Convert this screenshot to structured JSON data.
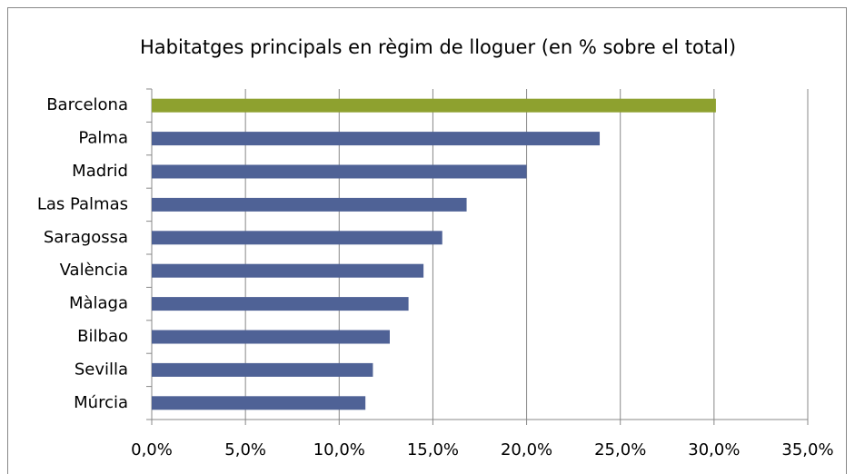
{
  "chart_data": {
    "type": "barh",
    "title": "Habitatges principals en règim de lloguer (en % sobre el total)",
    "categories": [
      "Barcelona",
      "Palma",
      "Madrid",
      "Las Palmas",
      "Saragossa",
      "València",
      "Màlaga",
      "Bilbao",
      "Sevilla",
      "Múrcia"
    ],
    "values": [
      30.1,
      23.9,
      20.0,
      16.8,
      15.5,
      14.5,
      13.7,
      12.7,
      11.8,
      11.4
    ],
    "colors": [
      "#8ea12f",
      "#4f6296",
      "#4f6296",
      "#4f6296",
      "#4f6296",
      "#4f6296",
      "#4f6296",
      "#4f6296",
      "#4f6296",
      "#4f6296"
    ],
    "xlim": [
      0,
      35
    ],
    "xticks": [
      {
        "value": 0,
        "label": "0,0%"
      },
      {
        "value": 5,
        "label": "5,0%"
      },
      {
        "value": 10,
        "label": "10,0%"
      },
      {
        "value": 15,
        "label": "15,0%"
      },
      {
        "value": 20,
        "label": "20,0%"
      },
      {
        "value": 25,
        "label": "25,0%"
      },
      {
        "value": 30,
        "label": "30,0%"
      },
      {
        "value": 35,
        "label": "35,0%"
      }
    ],
    "grid": true
  }
}
